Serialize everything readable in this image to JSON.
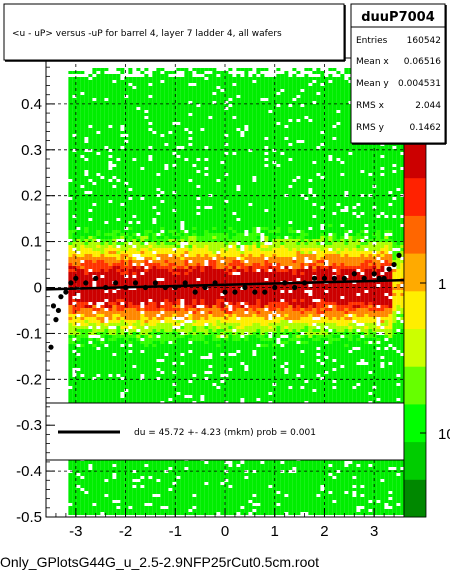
{
  "title": "<u - uP>       versus  -uP for barrel 4, layer 7 ladder 4, all wafers",
  "footer": "Only_GPlotsG44G_u_2.5-2.9NFP25rCut0.5cm.root",
  "stats": {
    "name": "duuP7004",
    "rows": [
      {
        "label": "Entries",
        "value": "160542"
      },
      {
        "label": "Mean x",
        "value": "0.06516"
      },
      {
        "label": "Mean y",
        "value": "0.004531"
      },
      {
        "label": "RMS x",
        "value": "2.044"
      },
      {
        "label": "RMS y",
        "value": "0.1462"
      }
    ]
  },
  "legend": {
    "entry": "du =    45.72 +-   4.23 (mkm) prob = 0.001"
  },
  "colors": {
    "low": "#00ee00",
    "mid": "#ffee00",
    "high": "#ff3300",
    "peak": "#cc0000",
    "fit": "#000000"
  },
  "chart_data": {
    "type": "heatmap",
    "xlim": [
      -3.6,
      3.6
    ],
    "ylim": [
      -0.5,
      0.5
    ],
    "x_ticks": [
      -3,
      -2,
      -1,
      0,
      1,
      2,
      3
    ],
    "y_ticks": [
      -0.5,
      -0.4,
      -0.3,
      -0.2,
      -0.1,
      0,
      0.1,
      0.2,
      0.3,
      0.4
    ],
    "z_log_labels": [
      "1",
      "10"
    ],
    "grid": true,
    "fit_line": {
      "x": [
        -3.6,
        3.6
      ],
      "y": [
        -0.004,
        0.016
      ]
    },
    "profile_points": {
      "x": [
        -3.5,
        -3.45,
        -3.4,
        -3.35,
        -3.3,
        -3.2,
        -3.1,
        -3.0,
        -2.8,
        -2.6,
        -2.4,
        -2.2,
        -2.0,
        -1.8,
        -1.6,
        -1.4,
        -1.2,
        -1.0,
        -0.8,
        -0.6,
        -0.4,
        -0.2,
        0.0,
        0.2,
        0.4,
        0.6,
        0.8,
        1.0,
        1.2,
        1.4,
        1.6,
        1.8,
        2.0,
        2.2,
        2.4,
        2.6,
        2.8,
        3.0,
        3.1,
        3.2,
        3.3,
        3.4,
        3.5
      ],
      "y": [
        -0.13,
        -0.04,
        -0.07,
        -0.05,
        -0.02,
        -0.01,
        0.01,
        0.02,
        0.01,
        0.02,
        0.0,
        0.01,
        0.0,
        0.01,
        0.0,
        0.01,
        0.0,
        0.0,
        0.01,
        -0.01,
        0.0,
        0.01,
        -0.01,
        -0.01,
        0.0,
        -0.01,
        -0.01,
        0.0,
        0.01,
        0.0,
        0.01,
        0.02,
        0.02,
        0.02,
        0.02,
        0.03,
        0.02,
        0.03,
        0.02,
        0.02,
        0.04,
        0.05,
        0.07
      ]
    }
  }
}
